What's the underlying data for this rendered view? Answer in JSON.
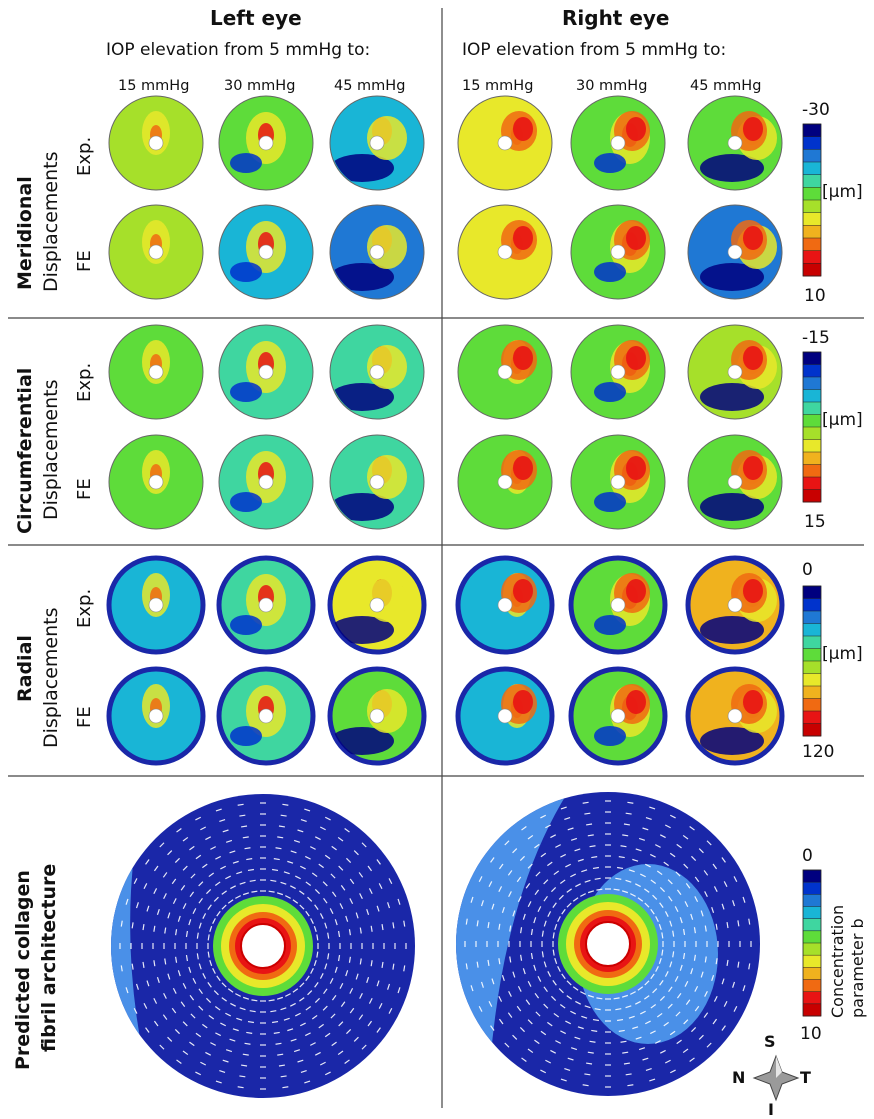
{
  "headers": {
    "left_eye": "Left eye",
    "right_eye": "Right eye",
    "iop_left": "IOP elevation from 5 mmHg to:",
    "iop_right": "IOP elevation from 5 mmHg to:"
  },
  "columns": [
    "15 mmHg",
    "30 mmHg",
    "45 mmHg",
    "15 mmHg",
    "30 mmHg",
    "45 mmHg"
  ],
  "sections": [
    {
      "title": "Meridional",
      "subtitle": "Displacements",
      "rows": [
        "Exp.",
        "FE"
      ],
      "scale": {
        "min": "-30",
        "max": "10",
        "unit": "[µm]"
      }
    },
    {
      "title": "Circumferential",
      "subtitle": "Displacements",
      "rows": [
        "Exp.",
        "FE"
      ],
      "scale": {
        "min": "-15",
        "max": "15",
        "unit": "[µm]"
      }
    },
    {
      "title": "Radial",
      "subtitle": "Displacements",
      "rows": [
        "Exp.",
        "FE"
      ],
      "scale": {
        "min": "0",
        "max": "120",
        "unit": "[µm]"
      }
    }
  ],
  "collagen": {
    "title_line1": "Predicted collagen",
    "title_line2": "fibril architecture",
    "scale": {
      "min": "0",
      "max": "10",
      "label_line1": "Concentration",
      "label_line2": "parameter b"
    }
  },
  "compass": {
    "n": "N",
    "s": "S",
    "t": "T",
    "i": "I"
  },
  "colors": {
    "map_stops": [
      "#00007f",
      "#0033cc",
      "#1f78d4",
      "#19b5d6",
      "#3fd6a0",
      "#5edc3a",
      "#a6e02a",
      "#e8e82a",
      "#f0b21e",
      "#f06a12",
      "#e81414",
      "#c80000"
    ],
    "dark_blue": "#1a27a8",
    "light_blue": "#4a90e8",
    "divider": "#444444"
  }
}
